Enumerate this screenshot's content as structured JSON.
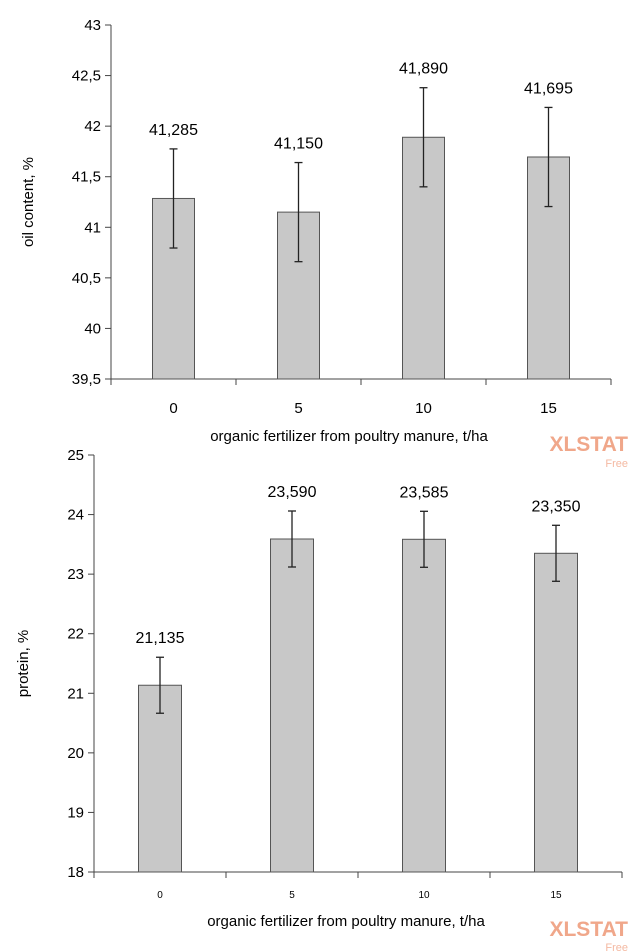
{
  "chart_data": [
    {
      "type": "bar",
      "categories": [
        "0",
        "5",
        "10",
        "15"
      ],
      "values": [
        41.285,
        41.15,
        41.89,
        41.695
      ],
      "error": [
        0.49,
        0.49,
        0.49,
        0.49
      ],
      "data_labels": [
        "41,285",
        "41,150",
        "41,890",
        "41,695"
      ],
      "ylim": [
        39.5,
        43
      ],
      "yticks": [
        "39,5",
        "40",
        "40,5",
        "41",
        "41,5",
        "42",
        "42,5",
        "43"
      ],
      "xlabel": "organic fertilizer from poultry manure, t/ha",
      "ylabel": "oil content, %",
      "bar_color": "#c8c8c8",
      "grid": false,
      "watermark": {
        "text": "XLSTAT",
        "sub": "Free"
      }
    },
    {
      "type": "bar",
      "categories": [
        "0",
        "5",
        "10",
        "15"
      ],
      "values": [
        21.135,
        23.59,
        23.585,
        23.35
      ],
      "error": [
        0.47,
        0.47,
        0.47,
        0.47
      ],
      "data_labels": [
        "21,135",
        "23,590",
        "23,585",
        "23,350"
      ],
      "ylim": [
        18,
        25
      ],
      "yticks": [
        "18",
        "19",
        "20",
        "21",
        "22",
        "23",
        "24",
        "25"
      ],
      "xlabel": "organic fertilizer from poultry manure, t/ha",
      "ylabel": "protein, %",
      "bar_color": "#c8c8c8",
      "grid": false,
      "watermark": {
        "text": "XLSTAT",
        "sub": "Free"
      }
    }
  ]
}
